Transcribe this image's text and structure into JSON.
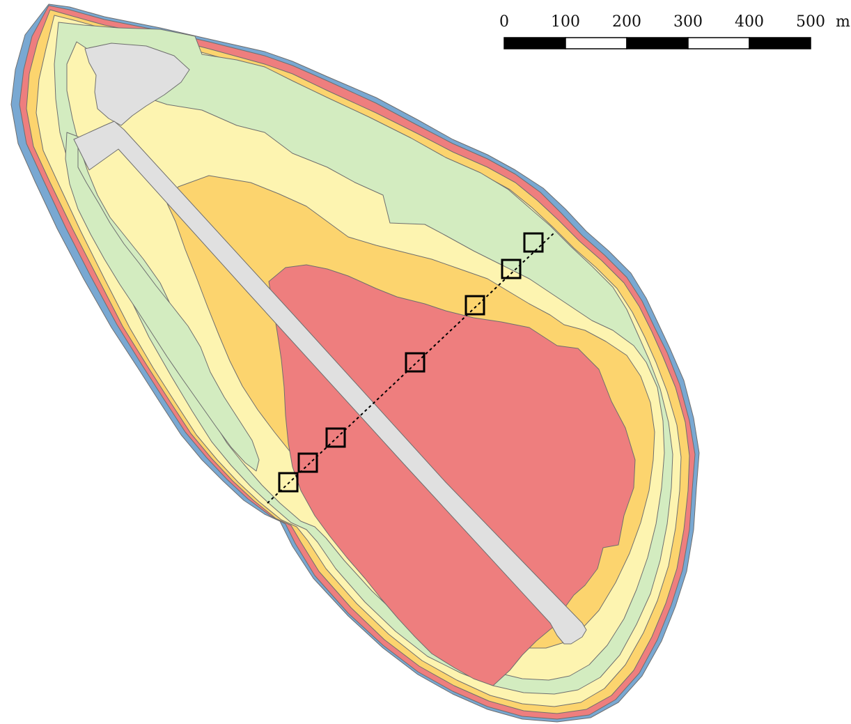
{
  "scale_bar": {
    "labels": [
      "0",
      "100",
      "200",
      "300",
      "400",
      "500"
    ],
    "unit": "m",
    "colors": {
      "dark": "#000000",
      "light": "#ffffff"
    }
  },
  "zone_colors": {
    "blue": "#79a8d2",
    "red": "#ee7e7e",
    "orange": "#fcd46e",
    "yellow": "#fdf4b0",
    "green": "#d3ecc0",
    "grey": "#e0e0e0"
  },
  "transect": {
    "quadrat_count": 7
  }
}
